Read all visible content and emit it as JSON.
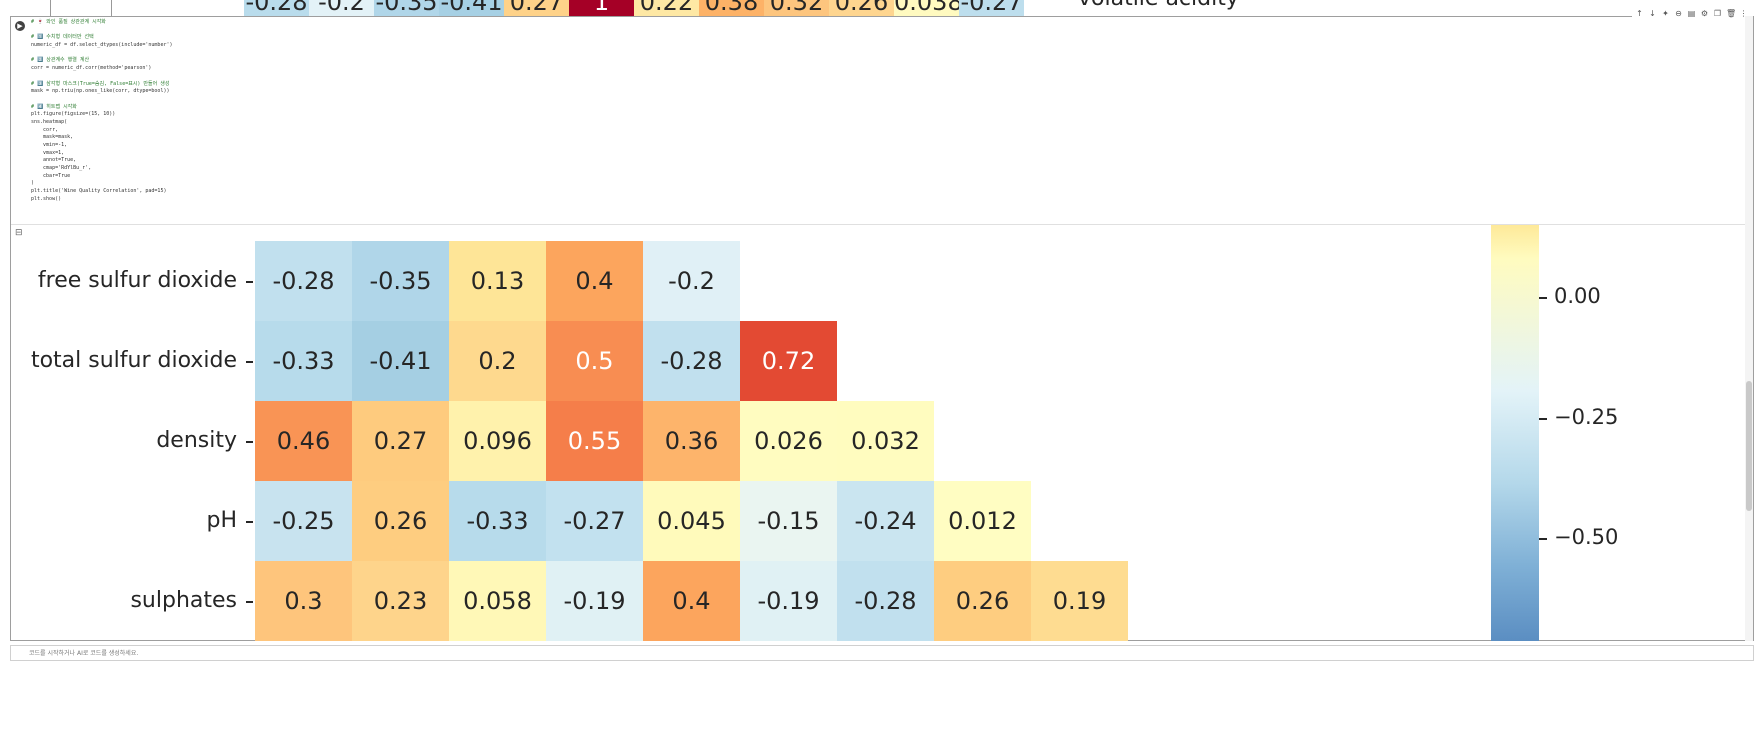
{
  "prev_output": {
    "values": [
      "-0.28",
      "-0.2",
      "-0.35",
      "-0.41",
      "0.27",
      "1",
      "0.22",
      "0.38",
      "0.32",
      "0.26",
      "0.038",
      "-0.27"
    ],
    "colors": [
      "#b9dcec",
      "#e3f2f7",
      "#b0d6e9",
      "#a6d0e4",
      "#fed289",
      "#a50026",
      "#fee8a4",
      "#fdb267",
      "#fdc57e",
      "#fed58f",
      "#fffac0",
      "#bddeed"
    ],
    "label_fragment": "volatile acidity"
  },
  "toolbar": {
    "icons": [
      "move-up-icon",
      "move-down-icon",
      "sparkle-icon",
      "link-icon",
      "comment-icon",
      "settings-icon",
      "copy-icon",
      "delete-icon",
      "more-icon"
    ],
    "glyphs": [
      "↑",
      "↓",
      "✦",
      "⊖",
      "▤",
      "⚙",
      "❐",
      "🗑",
      "⋮"
    ]
  },
  "code_lines": [
    {
      "text": "# 🍷 와인 품질 상관관계 시각화",
      "type": "cm"
    },
    {
      "text": "",
      "type": ""
    },
    {
      "text": "# 1️⃣ 수치형 데이터만 선택",
      "type": "cm"
    },
    {
      "text": "numeric_df = df.select_dtypes(include='number')",
      "type": ""
    },
    {
      "text": "",
      "type": ""
    },
    {
      "text": "# 2️⃣ 상관계수 행렬 계산",
      "type": "cm"
    },
    {
      "text": "corr = numeric_df.corr(method='pearson')",
      "type": ""
    },
    {
      "text": "",
      "type": ""
    },
    {
      "text": "# 3️⃣ 삼각형 마스크(True=숨김, False=표시) 만들어 생성",
      "type": "cm"
    },
    {
      "text": "mask = np.triu(np.ones_like(corr, dtype=bool))",
      "type": ""
    },
    {
      "text": "",
      "type": ""
    },
    {
      "text": "# 4️⃣ 히트맵 시각화",
      "type": "cm"
    },
    {
      "text": "plt.figure(figsize=(15, 10))",
      "type": ""
    },
    {
      "text": "sns.heatmap(",
      "type": ""
    },
    {
      "text": "    corr,",
      "type": ""
    },
    {
      "text": "    mask=mask,",
      "type": ""
    },
    {
      "text": "    vmin=-1,",
      "type": ""
    },
    {
      "text": "    vmax=1,",
      "type": ""
    },
    {
      "text": "    annot=True,",
      "type": ""
    },
    {
      "text": "    cmap='RdYlBu_r',",
      "type": ""
    },
    {
      "text": "    cbar=True",
      "type": ""
    },
    {
      "text": ")",
      "type": ""
    },
    {
      "text": "plt.title('Wine Quality Correlation', pad=15)",
      "type": ""
    },
    {
      "text": "plt.show()",
      "type": ""
    }
  ],
  "chart_data": {
    "type": "heatmap",
    "rows": [
      {
        "label": "free sulfur dioxide",
        "values": [
          "-0.28",
          "-0.35",
          "0.13",
          "0.4",
          "-0.2"
        ],
        "colors": [
          "#c1e0ee",
          "#b0d6e9",
          "#fee597",
          "#fca55d",
          "#e0f0f6"
        ]
      },
      {
        "label": "total sulfur dioxide",
        "values": [
          "-0.33",
          "-0.41",
          "0.2",
          "0.5",
          "-0.28",
          "0.72"
        ],
        "colors": [
          "#b7dbeb",
          "#a5cfe3",
          "#fed98e",
          "#f88d52",
          "#c1e0ee",
          "#e34a33"
        ]
      },
      {
        "label": "density",
        "values": [
          "0.46",
          "0.27",
          "0.096",
          "0.55",
          "0.36",
          "0.026",
          "0.032"
        ],
        "colors": [
          "#f99455",
          "#fecb7e",
          "#fff2ac",
          "#f57e4a",
          "#fdb46b",
          "#fffcc0",
          "#fffcbf"
        ]
      },
      {
        "label": "pH",
        "values": [
          "-0.25",
          "0.26",
          "-0.33",
          "-0.27",
          "0.045",
          "-0.15",
          "-0.24",
          "0.012"
        ],
        "colors": [
          "#c8e3ef",
          "#fecd80",
          "#b7dbeb",
          "#c2e1ef",
          "#fffabb",
          "#eaf5f1",
          "#cae5f0",
          "#fffdc2"
        ]
      },
      {
        "label": "sulphates",
        "values": [
          "0.3",
          "0.23",
          "0.058",
          "-0.19",
          "0.4",
          "-0.19",
          "-0.28",
          "0.26",
          "0.19"
        ],
        "colors": [
          "#fec57c",
          "#fed48b",
          "#fff8b7",
          "#e0f1f4",
          "#fca55d",
          "#e0f1f4",
          "#c1e0ee",
          "#fecd80",
          "#fedc91"
        ]
      }
    ],
    "partial_row_colors": [
      "#f4f9d8",
      "#fffbc0",
      "#fffbc0",
      "#bde0ee",
      "#d8ecf4",
      "#ecf6f1",
      "#d8ecf4",
      "#6a99c9",
      "#fee79c",
      "#fffbbf"
    ],
    "light_text_values": [
      "0.5",
      "0.72",
      "0.55"
    ],
    "colorbar": {
      "ticks": [
        {
          "label": "0.00",
          "value": 0.0
        },
        {
          "label": "−0.25",
          "value": -0.25
        },
        {
          "label": "−0.50",
          "value": -0.5
        }
      ]
    }
  },
  "next_cell": {
    "placeholder": "코드를 시작하거나 AI로 코드를 생성하세요."
  }
}
